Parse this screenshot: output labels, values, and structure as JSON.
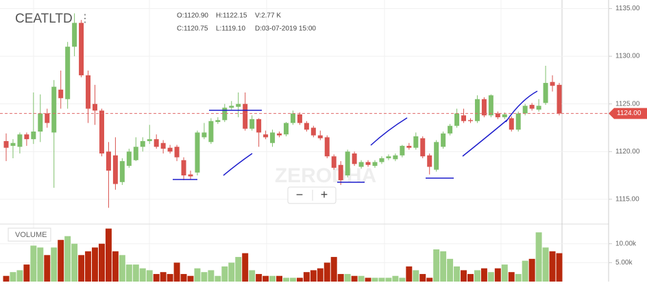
{
  "chart_data": [
    {
      "type": "candlestick",
      "title": "CEATLTD",
      "info": [
        "O:1120.90",
        "H:1122.15",
        "V:2.77 K",
        "C:1120.75",
        "L:1119.10",
        "D:03-07-2019 15:00"
      ],
      "watermark": "ZERODHA",
      "up_color": "#7dbf6a",
      "down_color": "#d9534f",
      "open": [
        1121.1,
        1120.6,
        1120.5,
        1121.8,
        1121.3,
        1122.1,
        1124.0,
        1122.0,
        1126.5,
        1125.5,
        1131.0,
        1133.5,
        1128.0,
        1125.0,
        1124.3,
        1120.0,
        1119.6,
        1116.8,
        1118.5,
        1119.1,
        1120.5,
        1121.1,
        1121.3,
        1120.9,
        1120.4,
        1120.5,
        1119.1,
        1117.6,
        1117.8,
        1121.5,
        1121.0,
        1123.1,
        1123.3,
        1124.6,
        1124.7,
        1125.0,
        1122.4,
        1123.4,
        1121.8,
        1120.9,
        1121.9,
        1121.8,
        1123.0,
        1123.9,
        1123.0,
        1122.5,
        1121.7,
        1121.5,
        1119.5,
        1118.6,
        1117.5,
        1119.8,
        1118.4,
        1118.9,
        1118.5,
        1118.9,
        1119.3,
        1119.2,
        1119.6,
        1120.6,
        1120.4,
        1121.4,
        1119.6,
        1118.1,
        1120.5,
        1121.9,
        1122.7,
        1123.8,
        1123.3,
        1123.2,
        1125.5,
        1123.8,
        1124.0,
        1123.6,
        1123.5,
        1122.3,
        1124.0,
        1124.9,
        1124.4,
        1125.1,
        1127.3,
        1127.0
      ],
      "high": [
        1121.9,
        1121.3,
        1122.0,
        1122.0,
        1126.2,
        1126.0,
        1124.5,
        1127.5,
        1128.5,
        1131.5,
        1134.5,
        1133.8,
        1128.5,
        1127.0,
        1124.5,
        1121.0,
        1121.5,
        1119.3,
        1120.3,
        1121.5,
        1121.5,
        1122.8,
        1121.8,
        1121.2,
        1120.7,
        1120.7,
        1119.4,
        1118.0,
        1122.2,
        1123.0,
        1123.5,
        1123.6,
        1125.0,
        1125.3,
        1126.2,
        1126.2,
        1123.8,
        1123.5,
        1122.2,
        1122.3,
        1122.1,
        1123.1,
        1124.3,
        1124.1,
        1123.2,
        1122.7,
        1122.2,
        1121.7,
        1119.7,
        1119.0,
        1120.2,
        1120.0,
        1119.1,
        1119.1,
        1119.1,
        1119.5,
        1119.7,
        1119.8,
        1120.7,
        1120.9,
        1122.0,
        1121.6,
        1119.8,
        1121.2,
        1122.1,
        1122.9,
        1124.5,
        1124.5,
        1123.5,
        1125.9,
        1125.7,
        1126.0,
        1124.2,
        1124.1,
        1123.7,
        1124.2,
        1125.0,
        1125.1,
        1125.5,
        1129.0,
        1128.0,
        1127.2
      ],
      "low": [
        1119.0,
        1119.3,
        1119.8,
        1120.6,
        1120.8,
        1121.0,
        1122.5,
        1116.2,
        1124.5,
        1124.5,
        1130.0,
        1127.8,
        1123.0,
        1122.8,
        1119.5,
        1114.1,
        1116.0,
        1116.5,
        1118.3,
        1119.0,
        1120.0,
        1120.8,
        1120.3,
        1119.8,
        1119.8,
        1119.0,
        1117.0,
        1117.1,
        1117.5,
        1121.3,
        1120.8,
        1122.9,
        1123.1,
        1124.4,
        1123.6,
        1122.2,
        1122.2,
        1120.5,
        1121.3,
        1120.5,
        1121.5,
        1121.6,
        1122.8,
        1122.8,
        1122.1,
        1121.5,
        1121.2,
        1119.3,
        1118.1,
        1116.5,
        1117.3,
        1118.5,
        1118.2,
        1118.4,
        1118.3,
        1118.7,
        1119.1,
        1119.0,
        1119.4,
        1120.2,
        1120.2,
        1119.3,
        1117.6,
        1117.9,
        1120.3,
        1121.7,
        1122.5,
        1123.0,
        1123.0,
        1123.0,
        1123.6,
        1123.6,
        1123.4,
        1123.4,
        1122.1,
        1122.1,
        1123.8,
        1124.3,
        1124.2,
        1124.9,
        1126.3,
        1123.8
      ],
      "close": [
        1120.4,
        1120.9,
        1121.8,
        1121.3,
        1122.1,
        1124.0,
        1123.0,
        1126.8,
        1125.6,
        1131.0,
        1133.5,
        1128.0,
        1124.5,
        1124.3,
        1119.8,
        1118.0,
        1116.6,
        1119.0,
        1120.0,
        1120.5,
        1121.1,
        1121.3,
        1120.5,
        1120.3,
        1120.0,
        1119.4,
        1117.5,
        1117.4,
        1122.0,
        1122.0,
        1123.2,
        1123.3,
        1124.6,
        1124.8,
        1125.0,
        1122.4,
        1123.4,
        1122.0,
        1121.5,
        1122.0,
        1121.7,
        1123.0,
        1124.0,
        1123.0,
        1122.3,
        1121.7,
        1121.4,
        1119.5,
        1118.3,
        1117.0,
        1120.0,
        1118.7,
        1118.9,
        1118.6,
        1118.9,
        1119.3,
        1119.5,
        1119.6,
        1120.6,
        1120.4,
        1121.6,
        1119.5,
        1118.4,
        1121.0,
        1121.9,
        1122.7,
        1124.0,
        1123.2,
        1123.2,
        1125.5,
        1123.8,
        1125.9,
        1123.6,
        1123.9,
        1122.3,
        1124.0,
        1124.8,
        1124.5,
        1124.8,
        1127.2,
        1126.9,
        1124.0
      ],
      "ylim": [
        1112.4,
        1135.9
      ],
      "yticks": [
        {
          "value": 1115,
          "label": "1115.00"
        },
        {
          "value": 1120,
          "label": "1120.00"
        },
        {
          "value": 1125,
          "label": "1125.00"
        },
        {
          "value": 1130,
          "label": "1130.00"
        },
        {
          "value": 1135,
          "label": "1135.00"
        }
      ],
      "price_line": {
        "value": 1124,
        "label": "1124.00"
      },
      "grid": true
    },
    {
      "type": "bar",
      "title": "VOLUME",
      "up_color": "#9fd08a",
      "down_color": "#b8290c",
      "values": [
        1.5,
        2.5,
        3,
        4.5,
        9.5,
        9,
        7,
        9,
        11,
        12,
        10,
        7,
        8,
        9,
        10,
        14,
        8,
        7,
        4.5,
        4.5,
        3.5,
        3,
        2,
        2.5,
        2,
        5,
        2,
        1.5,
        3.5,
        2.5,
        3,
        1.5,
        4,
        5,
        6.5,
        7.5,
        3,
        2,
        1.5,
        1.5,
        1.5,
        1,
        1,
        1,
        2.5,
        3,
        3.5,
        5,
        6.5,
        2,
        2,
        1.5,
        1.5,
        1,
        1,
        1,
        1,
        1.5,
        1,
        4,
        3,
        2,
        1,
        8.5,
        8,
        6,
        4,
        3,
        2,
        3,
        3.5,
        2.5,
        3.5,
        4.5,
        2.5,
        2,
        5.5,
        6,
        13,
        9,
        8,
        7.5
      ],
      "ylim": [
        0,
        15.2
      ],
      "yticks": [
        {
          "value": 5,
          "label": "5.00k"
        },
        {
          "value": 10,
          "label": "10.00k"
        }
      ],
      "grid": true
    }
  ]
}
